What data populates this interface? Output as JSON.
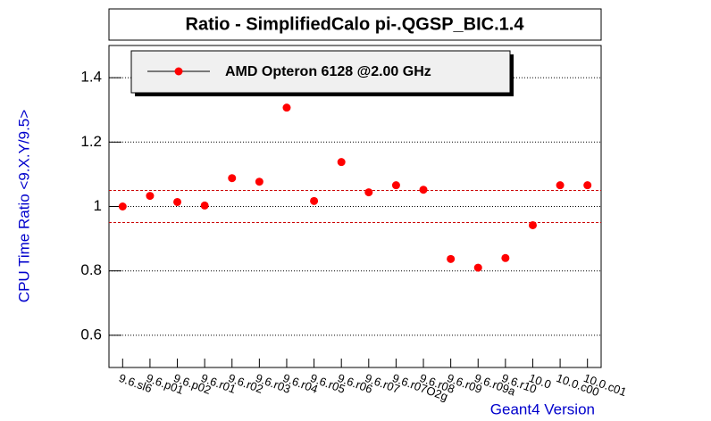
{
  "chart_data": {
    "type": "scatter",
    "title": "Ratio - SimplifiedCalo pi-.QGSP_BIC.1.4",
    "x_label": "Geant4 Version",
    "y_label": "CPU Time Ratio <9.X.Y/9.5>",
    "categories": [
      "9.6.sl6",
      "9.6.p01",
      "9.6.p02",
      "9.6.r01",
      "9.6.r02",
      "9.6.r03",
      "9.6.r04",
      "9.6.r05",
      "9.6.r06",
      "9.6.r07",
      "9.6.r07O2g",
      "9.6.r08",
      "9.6.r09",
      "9.6.r09a",
      "9.6.r10",
      "10.0",
      "10.0.c00",
      "10.0.c01"
    ],
    "series": [
      {
        "name": "AMD Opteron 6128 @2.00 GHz",
        "color": "#ff0000",
        "values": [
          1.0,
          1.033,
          1.014,
          1.003,
          1.088,
          1.077,
          1.307,
          1.017,
          1.138,
          1.044,
          1.066,
          1.052,
          0.837,
          0.81,
          0.84,
          0.942,
          1.066,
          1.066
        ]
      }
    ],
    "reference_lines": [
      1.05,
      0.95
    ],
    "ylim": [
      0.5,
      1.5
    ],
    "yticks": [
      0.6,
      0.8,
      1,
      1.2,
      1.4
    ],
    "grid": true
  }
}
